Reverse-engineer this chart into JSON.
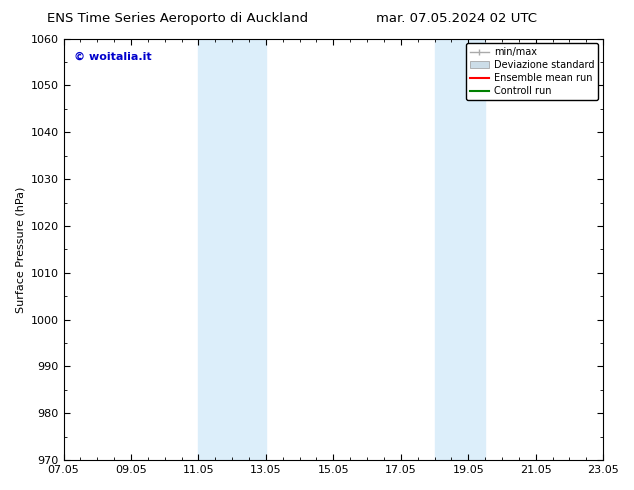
{
  "title_left": "ENS Time Series Aeroporto di Auckland",
  "title_right": "mar. 07.05.2024 02 UTC",
  "ylabel": "Surface Pressure (hPa)",
  "ylim": [
    970,
    1060
  ],
  "yticks": [
    970,
    980,
    990,
    1000,
    1010,
    1020,
    1030,
    1040,
    1050,
    1060
  ],
  "xticks_labels": [
    "07.05",
    "09.05",
    "11.05",
    "13.05",
    "15.05",
    "17.05",
    "19.05",
    "21.05",
    "23.05"
  ],
  "xtick_positions": [
    0,
    2,
    4,
    6,
    8,
    10,
    12,
    14,
    16
  ],
  "xlim": [
    0,
    16
  ],
  "shade_bands": [
    {
      "x_start": 4.0,
      "x_end": 6.0,
      "color": "#dceefa"
    },
    {
      "x_start": 11.0,
      "x_end": 12.5,
      "color": "#dceefa"
    }
  ],
  "watermark_text": "© woitalia.it",
  "watermark_color": "#0000cc",
  "legend_entries": [
    {
      "label": "min/max",
      "color": "#aaaaaa",
      "style": "errorbar"
    },
    {
      "label": "Deviazione standard",
      "color": "#ccdde8",
      "style": "fill"
    },
    {
      "label": "Ensemble mean run",
      "color": "red",
      "style": "line"
    },
    {
      "label": "Controll run",
      "color": "green",
      "style": "line"
    }
  ],
  "bg_color": "#ffffff",
  "title_fontsize": 9.5,
  "tick_fontsize": 8,
  "ylabel_fontsize": 8
}
